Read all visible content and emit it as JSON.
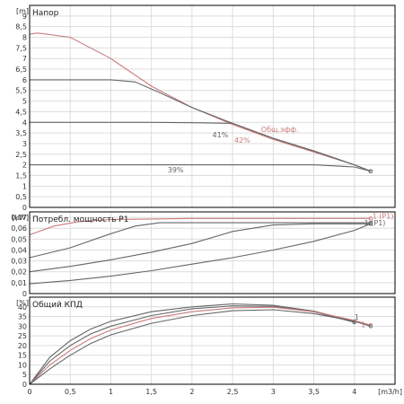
{
  "colors": {
    "background": "#ffffff",
    "grid": "#dcdcdc",
    "frame": "#000000",
    "gray_curve": "#666666",
    "red_curve": "#cc7a7a"
  },
  "chart_data": [
    {
      "type": "line",
      "title": "Напор",
      "unit": "[m]",
      "xlim": [
        0,
        4.5
      ],
      "ylim": [
        0,
        9.5
      ],
      "x_ticks": [
        "0",
        "0,5",
        "1",
        "1,5",
        "2",
        "2,5",
        "3",
        "3,5",
        "4"
      ],
      "y_ticks": [
        "0",
        "0,5",
        "1",
        "1,5",
        "2",
        "2,5",
        "3",
        "3,5",
        "4",
        "4,5",
        "5",
        "5,5",
        "6",
        "6,5",
        "7",
        "7,5",
        "8",
        "8,5",
        "9"
      ],
      "grid": true,
      "series": [
        {
          "color": "#cc7a7a",
          "x": [
            0,
            0.1,
            0.5,
            1.0,
            1.5,
            2.0,
            2.5,
            3.0,
            3.5,
            4.0,
            4.2
          ],
          "y": [
            8.15,
            8.2,
            8.0,
            7.0,
            5.7,
            4.7,
            3.9,
            3.2,
            2.6,
            2.0,
            1.7
          ]
        },
        {
          "color": "#666666",
          "x": [
            0,
            0.5,
            1.0,
            1.3,
            1.6,
            2.0,
            2.5,
            3.0,
            3.5,
            4.0,
            4.2
          ],
          "y": [
            6.0,
            6.0,
            6.0,
            5.9,
            5.4,
            4.7,
            3.95,
            3.25,
            2.65,
            2.0,
            1.7
          ]
        },
        {
          "color": "#666666",
          "x": [
            0,
            0.5,
            1.0,
            1.5,
            2.0,
            2.5,
            3.0,
            3.5,
            4.0,
            4.2
          ],
          "y": [
            4.0,
            4.0,
            4.0,
            4.0,
            3.98,
            3.95,
            3.25,
            2.65,
            2.0,
            1.7
          ]
        },
        {
          "color": "#666666",
          "x": [
            0,
            0.5,
            1.0,
            1.5,
            2.0,
            2.5,
            3.0,
            3.5,
            4.0,
            4.2
          ],
          "y": [
            2.0,
            2.0,
            2.0,
            2.0,
            2.0,
            2.0,
            2.0,
            2.0,
            1.9,
            1.7
          ]
        }
      ],
      "annotations": [
        {
          "text": "Общ.эфф.",
          "x": 2.85,
          "y": 3.55,
          "color": "#cc7a7a"
        },
        {
          "text": "41%",
          "x": 2.25,
          "y": 3.3,
          "color": "#666666"
        },
        {
          "text": "42%",
          "x": 2.52,
          "y": 3.05,
          "color": "#cc7a7a"
        },
        {
          "text": "39%",
          "x": 1.7,
          "y": 1.65,
          "color": "#666666"
        }
      ]
    },
    {
      "type": "line",
      "title": "Потребл. мощность P1",
      "unit": "[kW]",
      "xlim": [
        0,
        4.5
      ],
      "ylim": [
        0,
        0.075
      ],
      "x_ticks": [
        "0",
        "0,5",
        "1",
        "1,5",
        "2",
        "2,5",
        "3",
        "3,5",
        "4"
      ],
      "y_ticks": [
        "0",
        "0,01",
        "0,02",
        "0,03",
        "0,04",
        "0,05",
        "0,06",
        "0,07"
      ],
      "grid": true,
      "series": [
        {
          "color": "#cc7a7a",
          "x": [
            0,
            0.3,
            0.6,
            1.0,
            1.5,
            2.0,
            2.5,
            3.0,
            3.5,
            4.0,
            4.2
          ],
          "y": [
            0.054,
            0.062,
            0.066,
            0.068,
            0.0685,
            0.069,
            0.069,
            0.069,
            0.069,
            0.069,
            0.069
          ]
        },
        {
          "color": "#666666",
          "x": [
            0,
            0.5,
            1.0,
            1.3,
            1.6,
            2.0,
            2.5,
            3.0,
            3.5,
            4.0,
            4.2
          ],
          "y": [
            0.033,
            0.042,
            0.055,
            0.062,
            0.065,
            0.065,
            0.065,
            0.065,
            0.065,
            0.065,
            0.065
          ]
        },
        {
          "color": "#666666",
          "x": [
            0,
            0.5,
            1.0,
            1.5,
            2.0,
            2.5,
            3.0,
            3.5,
            4.0,
            4.2
          ],
          "y": [
            0.02,
            0.025,
            0.031,
            0.038,
            0.046,
            0.057,
            0.063,
            0.064,
            0.064,
            0.064
          ]
        },
        {
          "color": "#666666",
          "x": [
            0,
            0.5,
            1.0,
            1.5,
            2.0,
            2.5,
            3.0,
            3.5,
            4.0,
            4.2
          ],
          "y": [
            0.009,
            0.012,
            0.016,
            0.021,
            0.027,
            0.033,
            0.04,
            0.048,
            0.058,
            0.064
          ]
        }
      ],
      "annotations": [
        {
          "text": "1 (P1)",
          "x": 4.22,
          "y": 0.069,
          "color": "#cc7a7a"
        },
        {
          "text": "1 (P1)",
          "x": 4.12,
          "y": 0.0625,
          "color": "#666666"
        }
      ]
    },
    {
      "type": "line",
      "title": "Общий КПД",
      "unit": "[%]",
      "xlabel": "[m3/h]",
      "xlim": [
        0,
        4.5
      ],
      "ylim": [
        0,
        45
      ],
      "x_ticks": [
        "0",
        "0,5",
        "1",
        "1,5",
        "2",
        "2,5",
        "3",
        "3,5",
        "4"
      ],
      "y_ticks": [
        "0",
        "5",
        "10",
        "15",
        "20",
        "25",
        "30",
        "35",
        "40"
      ],
      "grid": true,
      "series": [
        {
          "color": "#666666",
          "x": [
            0,
            0.25,
            0.5,
            0.75,
            1.0,
            1.5,
            2.0,
            2.5,
            3.0,
            3.5,
            4.0
          ],
          "y": [
            0,
            14,
            22.5,
            28.5,
            32.5,
            37.5,
            40.0,
            41.5,
            40.8,
            37.8,
            32.5
          ]
        },
        {
          "color": "#666666",
          "x": [
            0,
            0.25,
            0.5,
            0.75,
            1.0,
            1.5,
            2.0,
            2.5,
            3.0,
            3.5,
            4.0
          ],
          "y": [
            0,
            12,
            20,
            26,
            30,
            35.5,
            39.0,
            40.5,
            40.2,
            37.5,
            32.0
          ]
        },
        {
          "color": "#cc7a7a",
          "x": [
            0,
            0.25,
            0.5,
            0.75,
            1.0,
            1.5,
            2.0,
            2.5,
            3.0,
            3.5,
            4.0,
            4.2
          ],
          "y": [
            0,
            10,
            17.5,
            23.5,
            28,
            34,
            37.5,
            39.5,
            39.8,
            37.5,
            33.0,
            30.5
          ]
        },
        {
          "color": "#666666",
          "x": [
            0,
            0.25,
            0.5,
            0.75,
            1.0,
            1.5,
            2.0,
            2.5,
            3.0,
            3.5,
            4.0,
            4.2
          ],
          "y": [
            0,
            8,
            15,
            21,
            25.5,
            31.5,
            35.5,
            38.0,
            38.5,
            36.5,
            32.5,
            30.0
          ]
        }
      ],
      "annotations": [
        {
          "text": "1",
          "x": 4.0,
          "y": 33.5,
          "color": "#666666"
        },
        {
          "text": "1",
          "x": 4.08,
          "y": 29.5,
          "color": "#cc7a7a"
        }
      ]
    }
  ]
}
